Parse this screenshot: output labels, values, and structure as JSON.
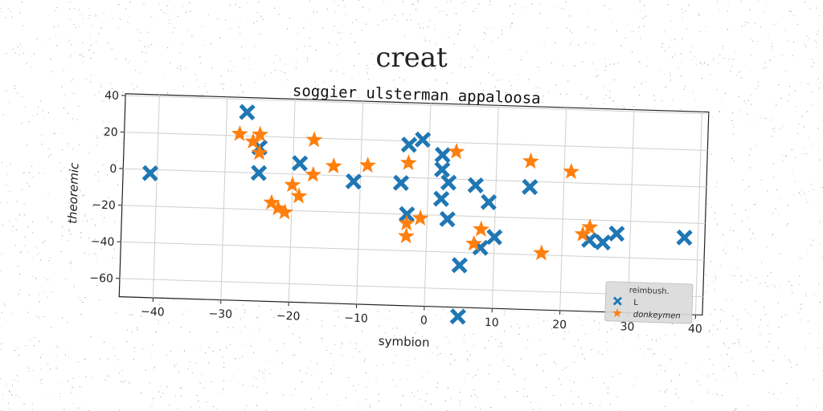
{
  "chart_data": {
    "type": "scatter",
    "suptitle": "creat",
    "title": "soggier ulsterman appaloosa",
    "xlabel": "symbion",
    "ylabel": "theoremic",
    "xlim": [
      -45,
      41
    ],
    "ylim": [
      -70,
      41
    ],
    "xticks": [
      -40,
      -30,
      -20,
      -10,
      0,
      10,
      20,
      30,
      40
    ],
    "yticks": [
      40,
      20,
      0,
      -20,
      -40,
      -60
    ],
    "grid": true,
    "legend": {
      "placement": "lower-right",
      "title": "reimbush."
    },
    "series": [
      {
        "name": "L",
        "marker": "x-thick",
        "color": "#1f77b4",
        "points": [
          [
            -41,
            -2
          ],
          [
            -27,
            33
          ],
          [
            -25,
            14
          ],
          [
            -25,
            0
          ],
          [
            -19,
            6
          ],
          [
            -11,
            -3
          ],
          [
            -4,
            -3
          ],
          [
            -3,
            18
          ],
          [
            -3,
            -20
          ],
          [
            -1,
            21
          ],
          [
            2,
            13
          ],
          [
            2,
            5
          ],
          [
            2,
            -11
          ],
          [
            3,
            -2
          ],
          [
            3,
            -22
          ],
          [
            5,
            -47
          ],
          [
            5,
            -75
          ],
          [
            7,
            -3
          ],
          [
            8,
            -37
          ],
          [
            9,
            -12
          ],
          [
            10,
            -31
          ],
          [
            15,
            -3
          ],
          [
            24,
            -31
          ],
          [
            26,
            -32
          ],
          [
            28,
            -27
          ],
          [
            38,
            -28
          ]
        ]
      },
      {
        "name": "donkeymen",
        "marker": "star",
        "color": "#ff7f0e",
        "points": [
          [
            -28,
            21
          ],
          [
            -26,
            17
          ],
          [
            -25,
            21
          ],
          [
            -25,
            11
          ],
          [
            -23,
            -16
          ],
          [
            -22,
            -19
          ],
          [
            -21,
            -21
          ],
          [
            -20,
            -6
          ],
          [
            -19,
            -12
          ],
          [
            -17,
            19
          ],
          [
            -17,
            0
          ],
          [
            -14,
            5
          ],
          [
            -9,
            6
          ],
          [
            -3,
            8
          ],
          [
            -3,
            -25
          ],
          [
            -3,
            -32
          ],
          [
            -1,
            -22
          ],
          [
            4,
            15
          ],
          [
            7,
            -35
          ],
          [
            8,
            -27
          ],
          [
            15,
            11
          ],
          [
            17,
            -39
          ],
          [
            21,
            6
          ],
          [
            23,
            -28
          ],
          [
            24,
            -24
          ]
        ]
      }
    ]
  }
}
